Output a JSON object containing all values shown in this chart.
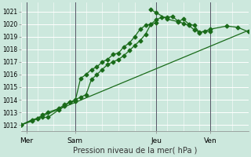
{
  "xlabel": "Pression niveau de la mer( hPa )",
  "bg_color": "#cce8dd",
  "grid_color": "#ffffff",
  "line_color": "#1a6b1a",
  "vline_color": "#555566",
  "xlim": [
    0,
    84
  ],
  "ylim": [
    1011.5,
    1021.7
  ],
  "yticks": [
    1012,
    1013,
    1014,
    1015,
    1016,
    1017,
    1018,
    1019,
    1020,
    1021
  ],
  "xtick_pos": [
    2,
    20,
    50,
    70
  ],
  "xtick_labels": [
    "Mer",
    "Sam",
    "Jeu",
    "Ven"
  ],
  "vlines": [
    2,
    20,
    50,
    70
  ],
  "series1_x": [
    0,
    4,
    6,
    8,
    10,
    14,
    16,
    18,
    20,
    22,
    24,
    26,
    28,
    30,
    32,
    34,
    36,
    38,
    40,
    42,
    44,
    46,
    48,
    50
  ],
  "series1_y": [
    1012.0,
    1012.4,
    1012.5,
    1012.6,
    1012.6,
    1013.2,
    1013.5,
    1013.8,
    1013.9,
    1015.7,
    1016.0,
    1016.4,
    1016.6,
    1017.0,
    1017.2,
    1017.6,
    1017.7,
    1018.2,
    1018.5,
    1019.0,
    1019.6,
    1019.9,
    1020.0,
    1020.1
  ],
  "series2_x": [
    0,
    4,
    6,
    8,
    10,
    14,
    16,
    18,
    20,
    22,
    24,
    26,
    28,
    30,
    32,
    34,
    36,
    38,
    40,
    42,
    44,
    46,
    48,
    50,
    52,
    54,
    56,
    58,
    60,
    62,
    64,
    66,
    68,
    70
  ],
  "series2_y": [
    1012.0,
    1012.3,
    1012.5,
    1012.8,
    1013.0,
    1013.3,
    1013.6,
    1013.8,
    1014.0,
    1014.2,
    1014.4,
    1015.6,
    1016.0,
    1016.4,
    1016.8,
    1017.0,
    1017.2,
    1017.5,
    1017.9,
    1018.3,
    1018.7,
    1019.2,
    1020.0,
    1020.35,
    1020.55,
    1020.55,
    1020.6,
    1020.25,
    1020.05,
    1019.9,
    1019.55,
    1019.35,
    1019.45,
    1019.4
  ],
  "series3_x": [
    0,
    84
  ],
  "series3_y": [
    1012.0,
    1019.5
  ],
  "series4_x": [
    48,
    50,
    54,
    58,
    60,
    62,
    64,
    66,
    70,
    76,
    80,
    84
  ],
  "series4_y": [
    1021.15,
    1020.9,
    1020.4,
    1020.2,
    1020.4,
    1020.0,
    1019.9,
    1019.3,
    1019.6,
    1019.85,
    1019.75,
    1019.4
  ]
}
